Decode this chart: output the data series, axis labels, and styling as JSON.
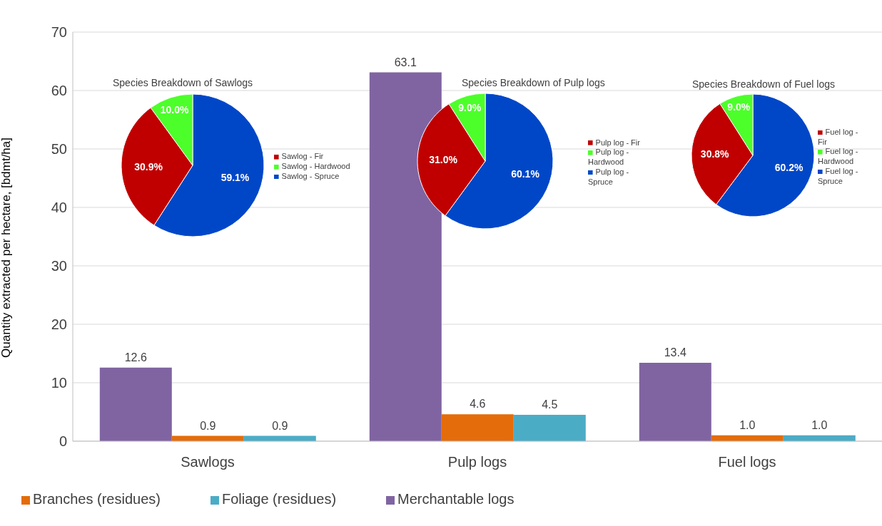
{
  "chart_data": [
    {
      "type": "bar",
      "categories": [
        "Sawlogs",
        "Pulp logs",
        "Fuel logs"
      ],
      "ylabel": "Quantity extracted per hectare, [bdmt/ha]",
      "ylim": [
        0,
        70
      ],
      "yticks": [
        0,
        10,
        20,
        30,
        40,
        50,
        60,
        70
      ],
      "grid": "y",
      "legend": "bottom",
      "series": [
        {
          "name": "Merchantable logs",
          "color": "#8064a2",
          "values": [
            12.6,
            63.1,
            13.4
          ],
          "value_labels": [
            "12.6",
            "63.1",
            "13.4"
          ]
        },
        {
          "name": "Branches (residues)",
          "color": "#e46c0a",
          "values": [
            0.9,
            4.6,
            1.0
          ],
          "value_labels": [
            "0.9",
            "4.6",
            "1.0"
          ]
        },
        {
          "name": "Foliage (residues)",
          "color": "#4bacc6",
          "values": [
            0.9,
            4.5,
            1.0
          ],
          "value_labels": [
            "0.9",
            "4.5",
            "1.0"
          ]
        }
      ]
    },
    {
      "type": "pie",
      "title": "Species Breakdown of Sawlogs",
      "categories": [
        "Sawlog - Spruce",
        "Sawlog - Fir",
        "Sawlog - Hardwood"
      ],
      "values": [
        59.1,
        30.9,
        10.0
      ],
      "value_labels": [
        "59.1%",
        "30.9%",
        "10.0%"
      ],
      "colors": [
        "#0047c8",
        "#c00000",
        "#4cff2a"
      ],
      "legend": "right"
    },
    {
      "type": "pie",
      "title": "Species Breakdown of Pulp logs",
      "categories": [
        "Pulp log - Spruce",
        "Pulp log - Fir",
        "Pulp log - Hardwood"
      ],
      "values": [
        60.1,
        31.0,
        9.0
      ],
      "value_labels": [
        "60.1%",
        "31.0%",
        "9.0%"
      ],
      "colors": [
        "#0047c8",
        "#c00000",
        "#4cff2a"
      ],
      "legend": "right"
    },
    {
      "type": "pie",
      "title": "Species Breakdown of Fuel logs",
      "categories": [
        "Fuel log - Spruce",
        "Fuel log - Fir",
        "Fuel log - Hardwood"
      ],
      "values": [
        60.2,
        30.8,
        9.0
      ],
      "value_labels": [
        "60.2%",
        "30.8%",
        "9.0%"
      ],
      "colors": [
        "#0047c8",
        "#c00000",
        "#4cff2a"
      ],
      "legend": "right"
    }
  ]
}
